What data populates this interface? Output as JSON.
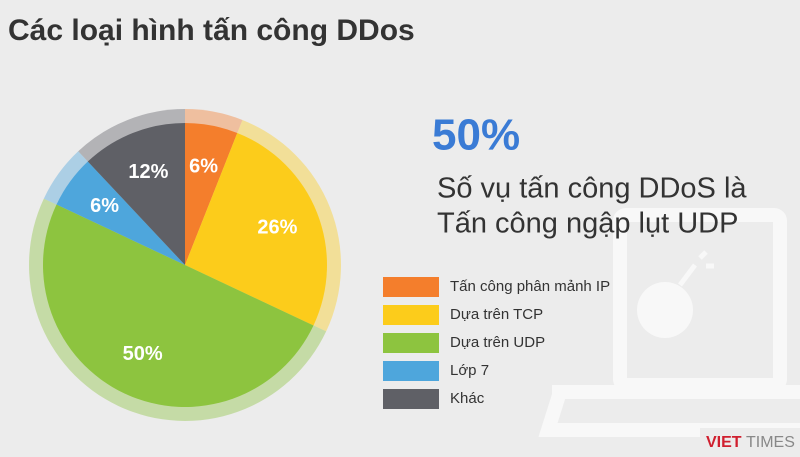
{
  "chart_data": {
    "type": "pie",
    "title": "Các loại hình tấn công DDos",
    "categories": [
      "Tấn công phân mảnh IP",
      "Dựa trên TCP",
      "Dựa trên UDP",
      "Lớp 7",
      "Khác"
    ],
    "values": [
      6,
      26,
      50,
      6,
      12
    ],
    "value_labels": [
      "6%",
      "26%",
      "50%",
      "6%",
      "12%"
    ],
    "colors": [
      "#f47e2c",
      "#fccc1b",
      "#8dc43f",
      "#4ea6dc",
      "#5f6066"
    ],
    "annotation": {
      "highlight": "50%",
      "lines": [
        "Số vụ tấn công DDoS là",
        "Tấn công ngập lụt UDP"
      ]
    },
    "logo": [
      "VIET",
      "TIMES"
    ]
  }
}
